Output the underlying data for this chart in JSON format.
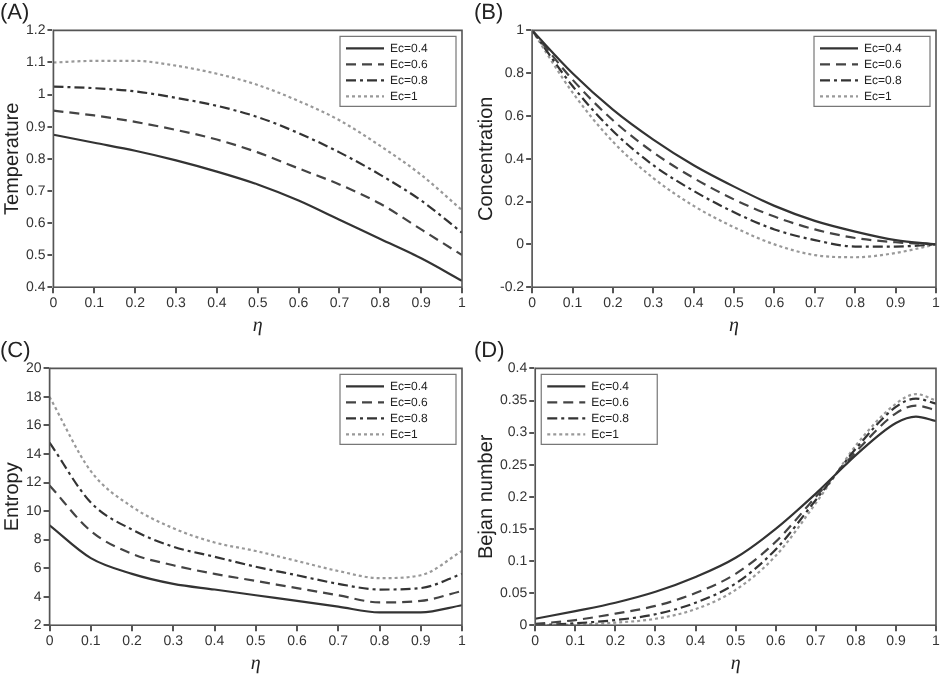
{
  "chart_data": [
    {
      "type": "line",
      "title": "(A)",
      "xlabel": "η",
      "ylabel": "Temperature",
      "xlim": [
        0,
        1
      ],
      "xticks": [
        0,
        0.1,
        0.2,
        0.3,
        0.4,
        0.5,
        0.6,
        0.7,
        0.8,
        0.9,
        1
      ],
      "ylim": [
        0.4,
        1.2
      ],
      "yticks": [
        0.4,
        0.5,
        0.6,
        0.7,
        0.8,
        0.9,
        1,
        1.1,
        1.2
      ],
      "legend": "top right",
      "marker": "none",
      "x": [
        0,
        0.1,
        0.2,
        0.3,
        0.4,
        0.5,
        0.6,
        0.7,
        0.8,
        0.9,
        1
      ],
      "series": [
        {
          "name": "Ec=0.4",
          "color": "#333333",
          "line_style": "solid",
          "values": [
            0.875,
            0.85,
            0.825,
            0.795,
            0.76,
            0.72,
            0.67,
            0.61,
            0.55,
            0.49,
            0.42
          ]
        },
        {
          "name": "Ec=0.6",
          "color": "#444444",
          "line_style": "dashed",
          "values": [
            0.95,
            0.935,
            0.915,
            0.89,
            0.86,
            0.82,
            0.77,
            0.72,
            0.66,
            0.58,
            0.5
          ]
        },
        {
          "name": "Ec=0.8",
          "color": "#333333",
          "line_style": "dashdot",
          "values": [
            1.025,
            1.02,
            1.01,
            0.99,
            0.965,
            0.93,
            0.88,
            0.82,
            0.75,
            0.67,
            0.57
          ]
        },
        {
          "name": "Ec=1",
          "color": "#999999",
          "line_style": "dotted",
          "values": [
            1.1,
            1.105,
            1.105,
            1.09,
            1.065,
            1.03,
            0.98,
            0.92,
            0.84,
            0.75,
            0.64
          ]
        }
      ]
    },
    {
      "type": "line",
      "title": "(B)",
      "xlabel": "η",
      "ylabel": "Concentration",
      "xlim": [
        0,
        1
      ],
      "xticks": [
        0,
        0.1,
        0.2,
        0.3,
        0.4,
        0.5,
        0.6,
        0.7,
        0.8,
        0.9,
        1
      ],
      "ylim": [
        -0.2,
        1
      ],
      "yticks": [
        -0.2,
        0,
        0.2,
        0.4,
        0.6,
        0.8,
        1
      ],
      "legend": "top right",
      "marker": "none",
      "x": [
        0,
        0.1,
        0.2,
        0.3,
        0.4,
        0.5,
        0.6,
        0.7,
        0.8,
        0.9,
        1
      ],
      "series": [
        {
          "name": "Ec=0.4",
          "color": "#333333",
          "line_style": "solid",
          "values": [
            1,
            0.8,
            0.63,
            0.49,
            0.37,
            0.27,
            0.18,
            0.11,
            0.06,
            0.02,
            0
          ]
        },
        {
          "name": "Ec=0.6",
          "color": "#444444",
          "line_style": "dashed",
          "values": [
            1,
            0.77,
            0.58,
            0.43,
            0.31,
            0.21,
            0.13,
            0.07,
            0.03,
            0.01,
            0
          ]
        },
        {
          "name": "Ec=0.8",
          "color": "#333333",
          "line_style": "dashdot",
          "values": [
            1,
            0.74,
            0.53,
            0.37,
            0.25,
            0.15,
            0.07,
            0.02,
            -0.01,
            -0.01,
            0
          ]
        },
        {
          "name": "Ec=1",
          "color": "#999999",
          "line_style": "dotted",
          "values": [
            1,
            0.71,
            0.48,
            0.31,
            0.18,
            0.08,
            0,
            -0.05,
            -0.06,
            -0.04,
            0
          ]
        }
      ]
    },
    {
      "type": "line",
      "title": "(C)",
      "xlabel": "η",
      "ylabel": "Entropy",
      "xlim": [
        0,
        1
      ],
      "xticks": [
        0,
        0.1,
        0.2,
        0.3,
        0.4,
        0.5,
        0.6,
        0.7,
        0.8,
        0.9,
        1
      ],
      "ylim": [
        2,
        20
      ],
      "yticks": [
        2,
        4,
        6,
        8,
        10,
        12,
        14,
        16,
        18,
        20
      ],
      "legend": "top right",
      "marker": "none",
      "x": [
        0,
        0.1,
        0.2,
        0.3,
        0.4,
        0.5,
        0.6,
        0.7,
        0.8,
        0.9,
        1
      ],
      "series": [
        {
          "name": "Ec=0.4",
          "color": "#333333",
          "line_style": "solid",
          "values": [
            9,
            6.7,
            5.6,
            4.9,
            4.5,
            4.1,
            3.7,
            3.3,
            2.9,
            2.9,
            3.4
          ]
        },
        {
          "name": "Ec=0.6",
          "color": "#444444",
          "line_style": "dashed",
          "values": [
            11.8,
            8.6,
            7,
            6.2,
            5.6,
            5.1,
            4.6,
            4.1,
            3.6,
            3.7,
            4.4
          ]
        },
        {
          "name": "Ec=0.8",
          "color": "#333333",
          "line_style": "dashdot",
          "values": [
            14.8,
            10.6,
            8.7,
            7.5,
            6.8,
            6.1,
            5.5,
            4.9,
            4.5,
            4.6,
            5.6
          ]
        },
        {
          "name": "Ec=1",
          "color": "#999999",
          "line_style": "dotted",
          "values": [
            18,
            12.8,
            10.3,
            8.8,
            7.8,
            7.2,
            6.5,
            5.8,
            5.3,
            5.5,
            7.2
          ]
        }
      ]
    },
    {
      "type": "line",
      "title": "(D)",
      "xlabel": "η",
      "ylabel": "Bejan number",
      "xlim": [
        0,
        1
      ],
      "xticks": [
        0,
        0.1,
        0.2,
        0.3,
        0.4,
        0.5,
        0.6,
        0.7,
        0.8,
        0.9,
        1
      ],
      "ylim": [
        0,
        0.4
      ],
      "yticks": [
        0,
        0.05,
        0.1,
        0.15,
        0.2,
        0.25,
        0.3,
        0.35,
        0.4
      ],
      "legend": "top left",
      "marker": "none",
      "x": [
        0,
        0.1,
        0.2,
        0.3,
        0.4,
        0.5,
        0.6,
        0.7,
        0.75,
        0.8,
        0.9,
        0.95,
        1
      ],
      "series": [
        {
          "name": "Ec=0.4",
          "color": "#333333",
          "line_style": "solid",
          "values": [
            0.01,
            0.022,
            0.035,
            0.052,
            0.075,
            0.105,
            0.15,
            0.205,
            0.235,
            0.265,
            0.315,
            0.325,
            0.318
          ]
        },
        {
          "name": "Ec=0.6",
          "color": "#444444",
          "line_style": "dashed",
          "values": [
            0.002,
            0.008,
            0.018,
            0.03,
            0.05,
            0.08,
            0.13,
            0.2,
            0.235,
            0.27,
            0.33,
            0.342,
            0.335
          ]
        },
        {
          "name": "Ec=0.8",
          "color": "#333333",
          "line_style": "dashdot",
          "values": [
            0,
            0.003,
            0.008,
            0.017,
            0.035,
            0.065,
            0.118,
            0.195,
            0.235,
            0.275,
            0.34,
            0.353,
            0.345
          ]
        },
        {
          "name": "Ec=1",
          "color": "#999999",
          "line_style": "dotted",
          "values": [
            0,
            0.001,
            0.004,
            0.01,
            0.025,
            0.055,
            0.108,
            0.19,
            0.235,
            0.28,
            0.345,
            0.36,
            0.35
          ]
        }
      ]
    }
  ]
}
